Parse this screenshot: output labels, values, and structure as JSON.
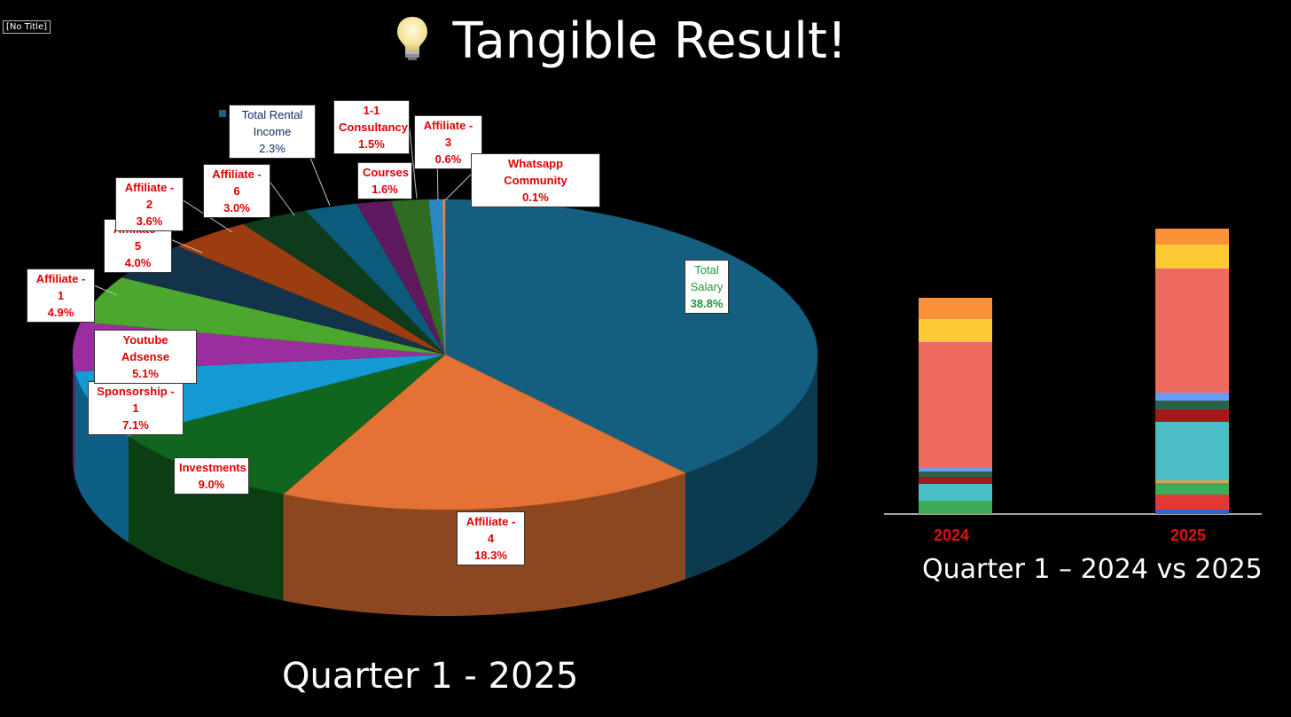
{
  "window": {
    "title": "[No Title]"
  },
  "slide": {
    "title": "Tangible Result!",
    "title_icon": "light-bulb-icon"
  },
  "chart_data": [
    {
      "type": "pie",
      "title": "Quarter 1 - 2025",
      "style": "3d",
      "slices": [
        {
          "label": "Total Salary",
          "value": 38.8,
          "pct": "38.8%",
          "color": "#145e80"
        },
        {
          "label": "Affiliate - 4",
          "value": 18.3,
          "pct": "18.3%",
          "color": "#e47234"
        },
        {
          "label": "Investments",
          "value": 9.0,
          "pct": "9.0%",
          "color": "#11661f"
        },
        {
          "label": "Sponsorship - 1",
          "value": 7.1,
          "pct": "7.1%",
          "color": "#159ad6"
        },
        {
          "label": "Youtube Adsense",
          "value": 5.1,
          "pct": "5.1%",
          "color": "#9b2e9e"
        },
        {
          "label": "Affiliate - 1",
          "value": 4.9,
          "pct": "4.9%",
          "color": "#4ba72e"
        },
        {
          "label": "Affiliate - 5",
          "value": 4.0,
          "pct": "4.0%",
          "color": "#13334a"
        },
        {
          "label": "Affiliate - 2",
          "value": 3.6,
          "pct": "3.6%",
          "color": "#9c3d11"
        },
        {
          "label": "Affiliate - 6",
          "value": 3.0,
          "pct": "3.0%",
          "color": "#0e3b1b"
        },
        {
          "label": "Total Rental Income",
          "value": 2.3,
          "pct": "2.3%",
          "color": "#0d5b7c"
        },
        {
          "label": "1-1 Consultancy",
          "value": 1.5,
          "pct": "1.5%",
          "color": "#5e1a5c"
        },
        {
          "label": "Courses",
          "value": 1.6,
          "pct": "1.6%",
          "color": "#2f6b22"
        },
        {
          "label": "Affiliate - 3",
          "value": 0.6,
          "pct": "0.6%",
          "color": "#2a88c2"
        },
        {
          "label": "Whatsapp Community",
          "value": 0.1,
          "pct": "0.1%",
          "color": "#e88a5a"
        }
      ]
    },
    {
      "type": "bar",
      "stacked": true,
      "title": "Quarter 1 – 2024 vs 2025",
      "categories": [
        "2024",
        "2025"
      ],
      "ylim": [
        0,
        330
      ],
      "series": [
        {
          "color": "#3a5fc8",
          "values": [
            0,
            5
          ]
        },
        {
          "color": "#e03a36",
          "values": [
            0,
            17
          ]
        },
        {
          "color": "#3dab57",
          "values": [
            15,
            13
          ]
        },
        {
          "color": "#d8a548",
          "values": [
            0,
            3
          ]
        },
        {
          "color": "#4bbfc4",
          "values": [
            19,
            66
          ]
        },
        {
          "color": "#a11b1b",
          "values": [
            8,
            14
          ]
        },
        {
          "color": "#2b6248",
          "values": [
            6,
            10
          ]
        },
        {
          "color": "#6b9af0",
          "values": [
            4,
            9
          ]
        },
        {
          "color": "#ec6b5e",
          "values": [
            142,
            140
          ]
        },
        {
          "color": "#fdc935",
          "values": [
            26,
            27
          ]
        },
        {
          "color": "#fd9139",
          "values": [
            24,
            18
          ]
        }
      ]
    }
  ]
}
